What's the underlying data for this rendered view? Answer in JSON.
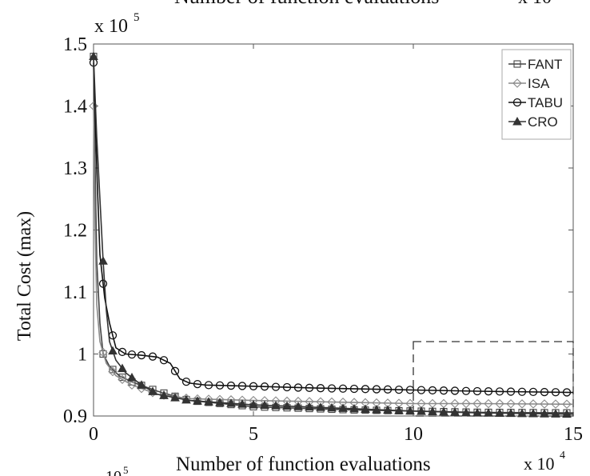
{
  "chart_data": {
    "type": "line",
    "top_label_left": "Number of function evaluations",
    "top_label_right": "x 10",
    "xlabel": "Number of function evaluations",
    "ylabel": "Total Cost (max)",
    "x_multiplier": "x 10",
    "x_multiplier_exp": "4",
    "y_multiplier": "x 10",
    "y_multiplier_exp": "5",
    "bottom_fragment_base": "10",
    "bottom_fragment_exp": "5",
    "xlim": [
      0,
      15
    ],
    "ylim": [
      0.9,
      1.5
    ],
    "xticks": [
      {
        "value": 0,
        "label": "0"
      },
      {
        "value": 5,
        "label": "5"
      },
      {
        "value": 10,
        "label": "10"
      },
      {
        "value": 15,
        "label": "15"
      }
    ],
    "yticks": [
      {
        "value": 0.9,
        "label": "0.9"
      },
      {
        "value": 1.0,
        "label": "1"
      },
      {
        "value": 1.1,
        "label": "1.1"
      },
      {
        "value": 1.2,
        "label": "1.2"
      },
      {
        "value": 1.3,
        "label": "1.3"
      },
      {
        "value": 1.4,
        "label": "1.4"
      },
      {
        "value": 1.5,
        "label": "1.5"
      }
    ],
    "grid": false,
    "legend_position": "top-right",
    "zoom_box": {
      "x": [
        10,
        15
      ],
      "y": [
        0.9,
        1.02
      ]
    },
    "series": [
      {
        "name": "FANT",
        "marker": "square",
        "color": "#444444",
        "points": [
          [
            0,
            1.48
          ],
          [
            0.05,
            1.3
          ],
          [
            0.1,
            1.15
          ],
          [
            0.2,
            1.05
          ],
          [
            0.3,
            1.0
          ],
          [
            0.5,
            0.98
          ],
          [
            0.8,
            0.965
          ],
          [
            1.2,
            0.955
          ],
          [
            2,
            0.94
          ],
          [
            3,
            0.925
          ],
          [
            5,
            0.915
          ],
          [
            8,
            0.91
          ],
          [
            10,
            0.908
          ],
          [
            12,
            0.906
          ],
          [
            15,
            0.905
          ]
        ]
      },
      {
        "name": "ISA",
        "marker": "diamond",
        "color": "#8a8a8a",
        "points": [
          [
            0,
            1.4
          ],
          [
            0.05,
            1.2
          ],
          [
            0.1,
            1.08
          ],
          [
            0.2,
            1.02
          ],
          [
            0.4,
            0.985
          ],
          [
            0.7,
            0.965
          ],
          [
            1.2,
            0.95
          ],
          [
            2,
            0.935
          ],
          [
            3,
            0.928
          ],
          [
            5,
            0.925
          ],
          [
            8,
            0.922
          ],
          [
            10,
            0.92
          ],
          [
            12,
            0.92
          ],
          [
            15,
            0.919
          ]
        ]
      },
      {
        "name": "TABU",
        "marker": "circle",
        "color": "#111111",
        "points": [
          [
            0,
            1.47
          ],
          [
            0.1,
            1.3
          ],
          [
            0.2,
            1.16
          ],
          [
            0.35,
            1.09
          ],
          [
            0.5,
            1.05
          ],
          [
            0.7,
            1.01
          ],
          [
            1.0,
            1.0
          ],
          [
            1.5,
            0.998
          ],
          [
            2.0,
            0.995
          ],
          [
            2.4,
            0.985
          ],
          [
            2.7,
            0.96
          ],
          [
            3.0,
            0.953
          ],
          [
            3.5,
            0.95
          ],
          [
            5,
            0.948
          ],
          [
            7,
            0.945
          ],
          [
            10,
            0.942
          ],
          [
            12,
            0.94
          ],
          [
            15,
            0.938
          ]
        ]
      },
      {
        "name": "CRO",
        "marker": "triangle",
        "color": "#333333",
        "points": [
          [
            0,
            1.48
          ],
          [
            0.1,
            1.35
          ],
          [
            0.2,
            1.25
          ],
          [
            0.3,
            1.15
          ],
          [
            0.4,
            1.07
          ],
          [
            0.5,
            1.02
          ],
          [
            0.7,
            0.99
          ],
          [
            1.0,
            0.97
          ],
          [
            1.5,
            0.95
          ],
          [
            2,
            0.935
          ],
          [
            3,
            0.925
          ],
          [
            5,
            0.918
          ],
          [
            8,
            0.912
          ],
          [
            10,
            0.908
          ],
          [
            12,
            0.905
          ],
          [
            15,
            0.903
          ]
        ]
      }
    ]
  }
}
